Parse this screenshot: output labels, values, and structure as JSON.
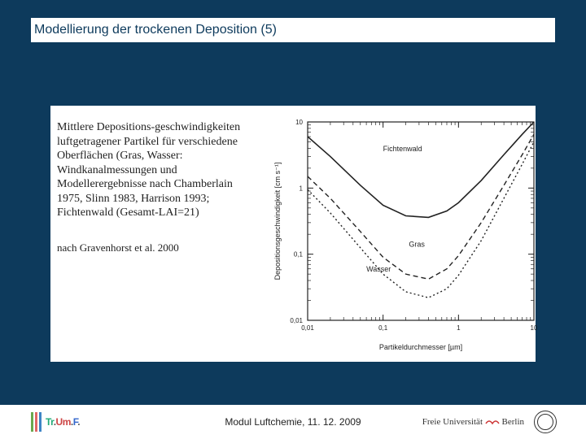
{
  "title": "Modellierung der trockenen Deposition (5)",
  "description": {
    "main": "Mittlere Depositions-geschwindigkeiten luftgetragener Partikel für verschiedene Oberflächen (Gras, Wasser: Windkanalmessungen und Modellerergebnisse nach Chamberlain 1975, Slinn 1983, Harrison 1993; Fichtenwald (Gesamt-LAI=21)",
    "cite": "nach Gravenhorst et al. 2000"
  },
  "footer": {
    "logo_left": "TrUmF",
    "center": "Modul Luftchemie, 11. 12. 2009",
    "uni": "Freie Universität",
    "city": "Berlin"
  },
  "chart": {
    "type": "line",
    "background_color": "#ffffff",
    "axis_color": "#222222",
    "grid": false,
    "xscale": "log",
    "yscale": "log",
    "xlim": [
      0.01,
      10
    ],
    "ylim": [
      0.01,
      10
    ],
    "xticks": [
      0.01,
      0.1,
      1,
      10
    ],
    "xtick_labels": [
      "0,01",
      "0,1",
      "1",
      "10"
    ],
    "yticks": [
      0.01,
      0.1,
      1,
      10
    ],
    "ytick_labels": [
      "0,01",
      "0,1",
      "1",
      "10"
    ],
    "xlabel": "Partikeldurchmesser [µm]",
    "ylabel": "Depositionsgeschwindigkeit [cm s⁻¹]",
    "label_fontsize": 9,
    "tick_fontsize": 8,
    "curve_label_fontsize": 9,
    "series": [
      {
        "name": "Fichtenwald",
        "color": "#222222",
        "dash": "none",
        "linewidth": 1.6,
        "label_pos": {
          "x": 0.1,
          "y": 3.6
        },
        "points": [
          {
            "x": 0.01,
            "y": 6.0
          },
          {
            "x": 0.02,
            "y": 3.0
          },
          {
            "x": 0.05,
            "y": 1.1
          },
          {
            "x": 0.1,
            "y": 0.55
          },
          {
            "x": 0.2,
            "y": 0.38
          },
          {
            "x": 0.4,
            "y": 0.36
          },
          {
            "x": 0.7,
            "y": 0.45
          },
          {
            "x": 1.0,
            "y": 0.6
          },
          {
            "x": 2.0,
            "y": 1.3
          },
          {
            "x": 4.0,
            "y": 3.2
          },
          {
            "x": 7.0,
            "y": 6.5
          },
          {
            "x": 10.0,
            "y": 10.0
          }
        ]
      },
      {
        "name": "Gras",
        "color": "#222222",
        "dash": "6,4",
        "linewidth": 1.4,
        "label_pos": {
          "x": 0.22,
          "y": 0.13
        },
        "points": [
          {
            "x": 0.01,
            "y": 1.5
          },
          {
            "x": 0.02,
            "y": 0.7
          },
          {
            "x": 0.05,
            "y": 0.22
          },
          {
            "x": 0.1,
            "y": 0.09
          },
          {
            "x": 0.2,
            "y": 0.05
          },
          {
            "x": 0.4,
            "y": 0.042
          },
          {
            "x": 0.7,
            "y": 0.06
          },
          {
            "x": 1.0,
            "y": 0.095
          },
          {
            "x": 2.0,
            "y": 0.3
          },
          {
            "x": 4.0,
            "y": 1.1
          },
          {
            "x": 7.0,
            "y": 3.2
          },
          {
            "x": 10.0,
            "y": 6.5
          }
        ]
      },
      {
        "name": "Wasser",
        "color": "#222222",
        "dash": "2,3",
        "linewidth": 1.4,
        "label_pos": {
          "x": 0.06,
          "y": 0.055
        },
        "points": [
          {
            "x": 0.01,
            "y": 0.95
          },
          {
            "x": 0.02,
            "y": 0.42
          },
          {
            "x": 0.05,
            "y": 0.125
          },
          {
            "x": 0.1,
            "y": 0.05
          },
          {
            "x": 0.2,
            "y": 0.027
          },
          {
            "x": 0.4,
            "y": 0.022
          },
          {
            "x": 0.7,
            "y": 0.03
          },
          {
            "x": 1.0,
            "y": 0.048
          },
          {
            "x": 2.0,
            "y": 0.16
          },
          {
            "x": 4.0,
            "y": 0.7
          },
          {
            "x": 7.0,
            "y": 2.3
          },
          {
            "x": 10.0,
            "y": 5.0
          }
        ]
      }
    ]
  }
}
